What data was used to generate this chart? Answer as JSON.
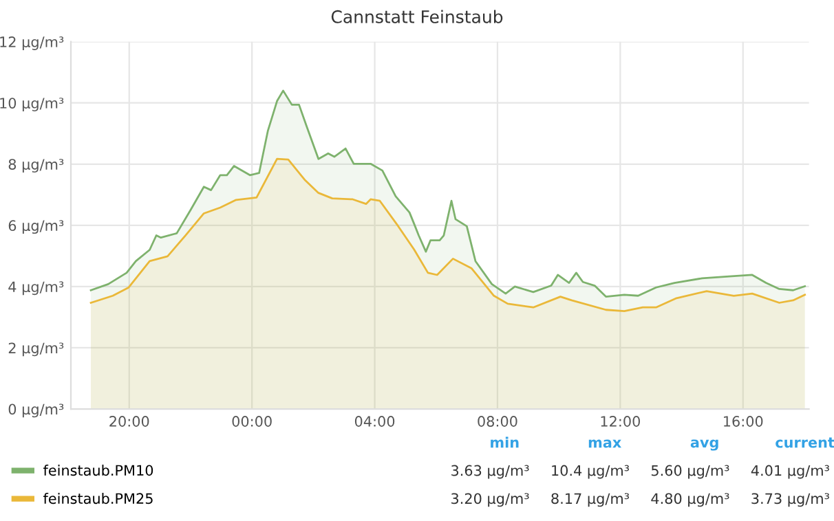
{
  "chart_data": {
    "type": "area",
    "title": "Cannstatt Feinstaub",
    "xlim": [
      "2000-01-01T18:06",
      "2000-01-02T18:09"
    ],
    "xticks": [
      {
        "value": "2000-01-01T20:00",
        "label": "20:00"
      },
      {
        "value": "2000-01-02T00:00",
        "label": "00:00"
      },
      {
        "value": "2000-01-02T04:00",
        "label": "04:00"
      },
      {
        "value": "2000-01-02T08:00",
        "label": "08:00"
      },
      {
        "value": "2000-01-02T12:00",
        "label": "12:00"
      },
      {
        "value": "2000-01-02T16:00",
        "label": "16:00"
      }
    ],
    "ylim": [
      0,
      12
    ],
    "yticks": [
      {
        "value": 0,
        "label": "0 µg/m³"
      },
      {
        "value": 2,
        "label": "2 µg/m³"
      },
      {
        "value": 4,
        "label": "4 µg/m³"
      },
      {
        "value": 6,
        "label": "6 µg/m³"
      },
      {
        "value": 8,
        "label": "8 µg/m³"
      },
      {
        "value": 10,
        "label": "10 µg/m³"
      },
      {
        "value": 12,
        "label": "12 µg/m³"
      }
    ],
    "grid": true,
    "legend": "bottom",
    "series": [
      {
        "name": "feinstaub.PM10",
        "color": "#7eb26d",
        "x": [
          "2000-01-01T18:45",
          "2000-01-01T19:19",
          "2000-01-01T19:55",
          "2000-01-01T20:13",
          "2000-01-01T20:40",
          "2000-01-01T20:53",
          "2000-01-01T21:02",
          "2000-01-01T21:33",
          "2000-01-01T22:00",
          "2000-01-01T22:26",
          "2000-01-01T22:40",
          "2000-01-01T22:58",
          "2000-01-01T23:11",
          "2000-01-01T23:25",
          "2000-01-01T23:56",
          "2000-01-02T00:14",
          "2000-01-02T00:31",
          "2000-01-02T00:49",
          "2000-01-02T01:01",
          "2000-01-02T01:18",
          "2000-01-02T01:32",
          "2000-01-02T01:47",
          "2000-01-02T02:10",
          "2000-01-02T02:29",
          "2000-01-02T02:41",
          "2000-01-02T03:03",
          "2000-01-02T03:19",
          "2000-01-02T03:52",
          "2000-01-02T04:15",
          "2000-01-02T04:41",
          "2000-01-02T05:08",
          "2000-01-02T05:17",
          "2000-01-02T05:26",
          "2000-01-02T05:40",
          "2000-01-02T05:49",
          "2000-01-02T06:07",
          "2000-01-02T06:15",
          "2000-01-02T06:30",
          "2000-01-02T06:38",
          "2000-01-02T07:00",
          "2000-01-02T07:17",
          "2000-01-02T07:49",
          "2000-01-02T08:16",
          "2000-01-02T08:34",
          "2000-01-02T09:10",
          "2000-01-02T09:45",
          "2000-01-02T09:58",
          "2000-01-02T10:20",
          "2000-01-02T10:34",
          "2000-01-02T10:47",
          "2000-01-02T11:10",
          "2000-01-02T11:32",
          "2000-01-02T12:08",
          "2000-01-02T12:35",
          "2000-01-02T13:10",
          "2000-01-02T13:46",
          "2000-01-02T14:40",
          "2000-01-02T15:33",
          "2000-01-02T16:18",
          "2000-01-02T16:45",
          "2000-01-02T17:11",
          "2000-01-02T17:38",
          "2000-01-02T18:01"
        ],
        "values": [
          3.88,
          4.08,
          4.45,
          4.83,
          5.2,
          5.67,
          5.6,
          5.74,
          6.5,
          7.26,
          7.15,
          7.64,
          7.64,
          7.94,
          7.64,
          7.71,
          9.08,
          10.06,
          10.4,
          9.94,
          9.94,
          9.23,
          8.17,
          8.35,
          8.24,
          8.51,
          8.01,
          8.01,
          7.79,
          6.95,
          6.42,
          6.05,
          5.67,
          5.14,
          5.51,
          5.51,
          5.67,
          6.8,
          6.2,
          5.97,
          4.83,
          4.08,
          3.77,
          4.0,
          3.82,
          4.03,
          4.38,
          4.12,
          4.45,
          4.15,
          4.03,
          3.67,
          3.73,
          3.7,
          3.97,
          4.12,
          4.27,
          4.33,
          4.38,
          4.12,
          3.92,
          3.88,
          4.01
        ]
      },
      {
        "name": "feinstaub.PM25",
        "color": "#eab839",
        "x": [
          "2000-01-01T18:45",
          "2000-01-01T19:28",
          "2000-01-01T19:59",
          "2000-01-01T20:40",
          "2000-01-01T21:15",
          "2000-01-01T21:50",
          "2000-01-01T22:26",
          "2000-01-01T22:58",
          "2000-01-01T23:29",
          "2000-01-02T00:09",
          "2000-01-02T00:49",
          "2000-01-02T01:11",
          "2000-01-02T01:43",
          "2000-01-02T02:10",
          "2000-01-02T02:37",
          "2000-01-02T03:17",
          "2000-01-02T03:43",
          "2000-01-02T03:52",
          "2000-01-02T04:10",
          "2000-01-02T04:46",
          "2000-01-02T05:17",
          "2000-01-02T05:44",
          "2000-01-02T06:02",
          "2000-01-02T06:33",
          "2000-01-02T07:09",
          "2000-01-02T07:53",
          "2000-01-02T08:20",
          "2000-01-02T09:10",
          "2000-01-02T10:03",
          "2000-01-02T10:25",
          "2000-01-02T11:32",
          "2000-01-02T12:08",
          "2000-01-02T12:44",
          "2000-01-02T13:10",
          "2000-01-02T13:50",
          "2000-01-02T14:49",
          "2000-01-02T15:42",
          "2000-01-02T16:18",
          "2000-01-02T17:11",
          "2000-01-02T17:38",
          "2000-01-02T18:01"
        ],
        "values": [
          3.47,
          3.7,
          3.97,
          4.83,
          4.99,
          5.67,
          6.39,
          6.58,
          6.83,
          6.91,
          8.17,
          8.15,
          7.49,
          7.06,
          6.88,
          6.85,
          6.7,
          6.85,
          6.8,
          5.97,
          5.21,
          4.45,
          4.38,
          4.91,
          4.6,
          3.7,
          3.44,
          3.32,
          3.67,
          3.55,
          3.24,
          3.2,
          3.32,
          3.32,
          3.62,
          3.85,
          3.7,
          3.77,
          3.47,
          3.55,
          3.73
        ]
      }
    ],
    "annotations": [
      "min",
      "max",
      "avg",
      "current",
      "3.63 µg/m³",
      "10.4 µg/m³",
      "5.60 µg/m³",
      "4.01 µg/m³",
      "3.20 µg/m³",
      "8.17 µg/m³",
      "4.80 µg/m³",
      "3.73 µg/m³"
    ]
  }
}
